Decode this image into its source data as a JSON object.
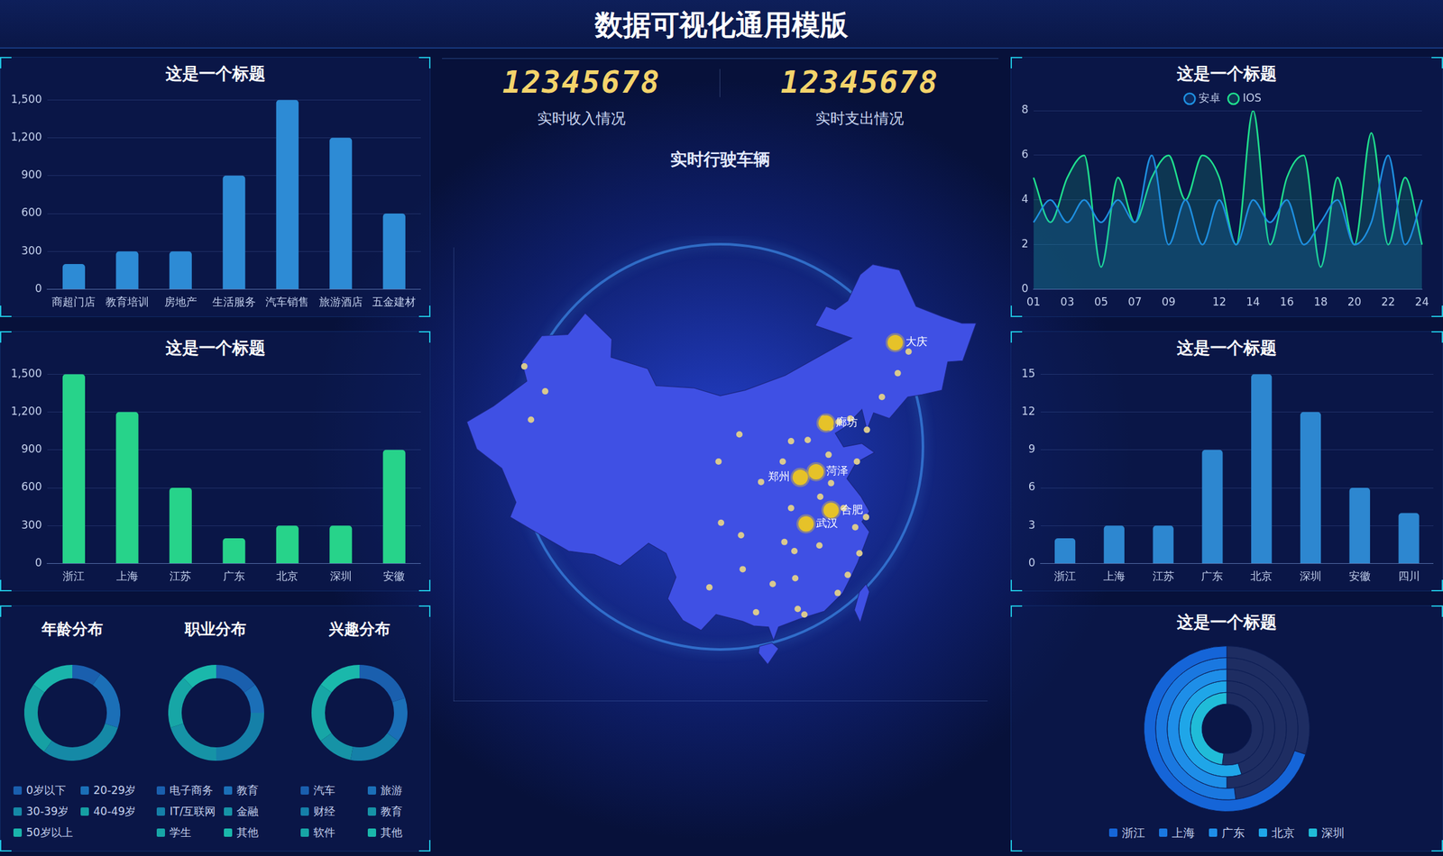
{
  "title": "数据可视化通用模版",
  "counters": [
    {
      "value": 12345678,
      "label": "实时收入情况"
    },
    {
      "value": 12345678,
      "label": "实时支出情况"
    }
  ],
  "chart_data": [
    {
      "type": "bar",
      "title": "这是一个标题",
      "categories": [
        "商超门店",
        "教育培训",
        "房地产",
        "生活服务",
        "汽车销售",
        "旅游酒店",
        "五金建材"
      ],
      "values": [
        200,
        300,
        300,
        900,
        1500,
        1200,
        600
      ],
      "color": "#2d8bd5",
      "ylim": [
        0,
        1500
      ],
      "yticks": [
        0,
        300,
        600,
        900,
        {
          "value": 1200,
          "label": "1,200"
        },
        {
          "value": 1500,
          "label": "1,500"
        }
      ],
      "grid": true
    },
    {
      "type": "bar",
      "title": "这是一个标题",
      "categories": [
        "浙江",
        "上海",
        "江苏",
        "广东",
        "北京",
        "深圳",
        "安徽"
      ],
      "values": [
        1500,
        1200,
        600,
        200,
        300,
        300,
        900
      ],
      "color": "#27d38a",
      "ylim": [
        0,
        1500
      ],
      "yticks": [
        0,
        300,
        600,
        900,
        {
          "value": 1200,
          "label": "1,200"
        },
        {
          "value": 1500,
          "label": "1,500"
        }
      ],
      "grid": true
    },
    {
      "type": "doughnut",
      "title": "年龄分布",
      "categories": [
        "0岁以下",
        "20-29岁",
        "30-39岁",
        "40-49岁",
        "50岁以上"
      ],
      "values": [
        10,
        20,
        30,
        25,
        15
      ],
      "colors": [
        "#1a5fae",
        "#1b6fb7",
        "#1589a6",
        "#16a0a3",
        "#1ab4ab"
      ],
      "legend": "bottom"
    },
    {
      "type": "doughnut",
      "title": "职业分布",
      "categories": [
        "电子商务",
        "教育",
        "IT/互联网",
        "金融",
        "学生",
        "其他"
      ],
      "values": [
        15,
        10,
        25,
        20,
        18,
        12
      ],
      "colors": [
        "#1a5fae",
        "#1b6fb7",
        "#1580a8",
        "#1693a6",
        "#17a6a6",
        "#1ab8ab"
      ],
      "legend": "bottom"
    },
    {
      "type": "doughnut",
      "title": "兴趣分布",
      "categories": [
        "汽车",
        "旅游",
        "财经",
        "教育",
        "软件",
        "其他"
      ],
      "values": [
        20,
        15,
        18,
        12,
        20,
        15
      ],
      "colors": [
        "#1a5fae",
        "#1b6fb7",
        "#1580a8",
        "#1693a6",
        "#17a6a6",
        "#1ab8ab"
      ],
      "legend": "bottom"
    },
    {
      "type": "scatter",
      "title": "实时行驶车辆",
      "xlim": [
        72,
        136
      ],
      "ylim": [
        15,
        55
      ],
      "tick_labels": false,
      "series": [
        {
          "color": "#e6c229",
          "marker": "circle",
          "x": [
            125.0,
            116.7,
            115.5,
            113.6,
            117.3,
            114.3
          ],
          "values": [
            46.6,
            39.5,
            35.2,
            34.7,
            31.8,
            30.6
          ],
          "labels": [
            "大庆",
            "廊坊",
            "菏泽",
            "郑州",
            "合肥",
            "武汉"
          ]
        },
        {
          "color": "#d9c98f",
          "marker": "circle",
          "x": [
            80.5,
            83.0,
            81.3,
            103.8,
            106.3,
            108.9,
            111.5,
            112.5,
            114.5,
            116.4,
            117.2,
            118.2,
            119.6,
            121.6,
            123.4,
            125.3,
            126.6,
            120.4,
            117.0,
            118.8,
            120.2,
            121.5,
            119.3,
            113.3,
            114.1,
            112.9,
            108.3,
            106.7,
            104.1,
            106.5,
            102.7,
            110.3,
            115.9,
            117.3,
            112.5,
            111.7,
            113.0,
            118.1,
            120.7,
            116.0
          ],
          "values": [
            44.5,
            42.3,
            39.8,
            36.1,
            38.5,
            34.3,
            36.1,
            37.9,
            38.0,
            39.9,
            39.1,
            39.6,
            39.9,
            38.9,
            41.8,
            43.9,
            45.8,
            36.1,
            36.7,
            32.0,
            30.3,
            31.2,
            26.1,
            23.1,
            22.6,
            28.2,
            22.8,
            26.6,
            30.7,
            29.6,
            25.0,
            25.3,
            28.7,
            34.2,
            32.0,
            29.0,
            25.8,
            24.5,
            28.0,
            33.0
          ]
        }
      ]
    },
    {
      "type": "line",
      "title": "这是一个标题",
      "categories": [
        "01",
        null,
        "03",
        null,
        "05",
        null,
        "07",
        null,
        "09",
        null,
        null,
        "12",
        null,
        "14",
        null,
        "16",
        null,
        "18",
        null,
        "20",
        null,
        "22",
        null,
        "24"
      ],
      "series": [
        {
          "name": "安卓",
          "color": "#1e8fe0",
          "values": [
            3,
            4,
            3,
            4,
            3,
            4,
            3,
            6,
            2,
            4,
            2,
            4,
            2,
            4,
            3,
            4,
            2,
            3,
            4,
            2,
            3,
            6,
            2,
            4
          ]
        },
        {
          "name": "IOS",
          "color": "#1fe08e",
          "values": [
            5,
            3,
            5,
            6,
            1,
            5,
            3,
            5,
            6,
            4,
            6,
            5,
            2,
            8,
            2,
            5,
            6,
            1,
            5,
            2,
            7,
            2,
            5,
            2
          ]
        }
      ],
      "ylim": [
        0,
        8
      ],
      "yticks": [
        0,
        2,
        4,
        6,
        8
      ],
      "grid": true,
      "legend": "top"
    },
    {
      "type": "bar",
      "title": "这是一个标题",
      "categories": [
        "浙江",
        "上海",
        "江苏",
        "广东",
        "北京",
        "深圳",
        "安徽",
        "四川"
      ],
      "values": [
        2,
        3,
        3,
        9,
        15,
        12,
        6,
        4
      ],
      "color": "#2d87d0",
      "ylim": [
        0,
        15
      ],
      "yticks": [
        0,
        3,
        6,
        9,
        12,
        15
      ],
      "grid": true
    },
    {
      "type": "radial_bar",
      "title": "这是一个标题",
      "categories": [
        "浙江",
        "上海",
        "广东",
        "北京",
        "深圳"
      ],
      "values": [
        70,
        52,
        50,
        55,
        48
      ],
      "ylim": [
        0,
        100
      ],
      "colors": [
        "#1565d8",
        "#1a78e0",
        "#1e8ee8",
        "#1fa6e8",
        "#20bcd8"
      ],
      "legend": "bottom"
    }
  ]
}
